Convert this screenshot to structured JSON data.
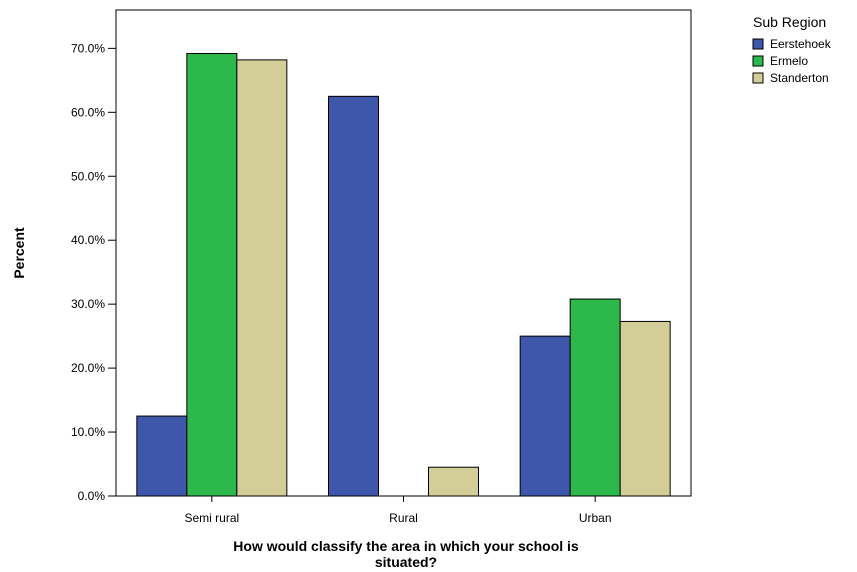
{
  "chart_data": {
    "type": "bar",
    "xlabel_lines": [
      "How would classify the area in which your school is",
      "situated?"
    ],
    "ylabel": "Percent",
    "categories": [
      "Semi rural",
      "Rural",
      "Urban"
    ],
    "series": [
      {
        "name": "Eerstehoek",
        "values": [
          12.5,
          62.5,
          25.0
        ],
        "color": "#3f57ab"
      },
      {
        "name": "Ermelo",
        "values": [
          69.2,
          0.0,
          30.8
        ],
        "color": "#2db84b"
      },
      {
        "name": "Standerton",
        "values": [
          68.2,
          4.5,
          27.3
        ],
        "color": "#d3ce98"
      }
    ],
    "ylim": [
      0,
      76
    ],
    "yticks": [
      0,
      10,
      20,
      30,
      40,
      50,
      60,
      70
    ],
    "ytick_labels": [
      "0.0%",
      "10.0%",
      "20.0%",
      "30.0%",
      "40.0%",
      "50.0%",
      "60.0%",
      "70.0%"
    ],
    "grid": false,
    "legend": {
      "title": "Sub Region",
      "placement": "top-right"
    }
  }
}
